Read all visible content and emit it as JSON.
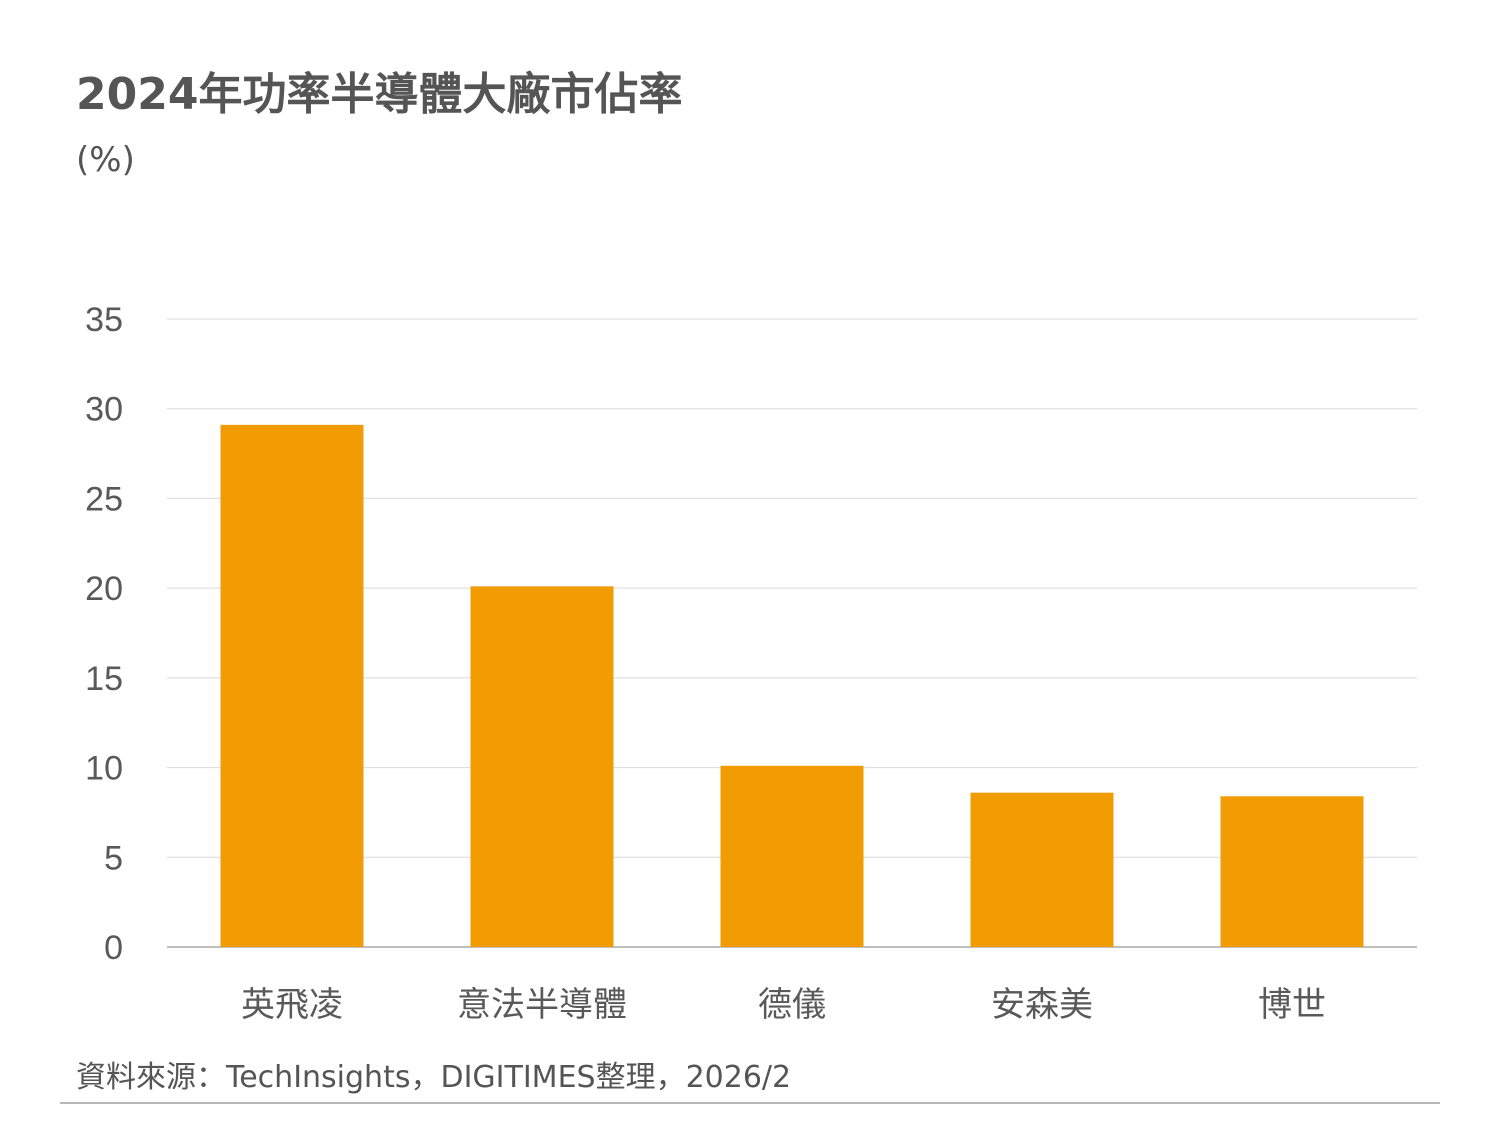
{
  "header": {
    "title": "2024年功率半導體大廠市佔率",
    "unit": "(%)"
  },
  "footer": {
    "source": "資料來源：TechInsights，DIGITIMES整理，2026/2"
  },
  "colors": {
    "bar": "#F29C04",
    "grid": "#D9D9D9",
    "axis": "#BFBFBF",
    "text": "#595959"
  },
  "chart_data": {
    "type": "bar",
    "categories": [
      "英飛凌",
      "意法半導體",
      "德儀",
      "安森美",
      "博世"
    ],
    "values": [
      29.1,
      20.1,
      10.1,
      8.6,
      8.4
    ],
    "title": "2024年功率半導體大廠市佔率",
    "ylabel": "(%)",
    "xlabel": "",
    "ylim": [
      0,
      35
    ],
    "yticks": [
      0,
      5,
      10,
      15,
      20,
      25,
      30,
      35
    ],
    "grid": true,
    "legend": "none"
  }
}
